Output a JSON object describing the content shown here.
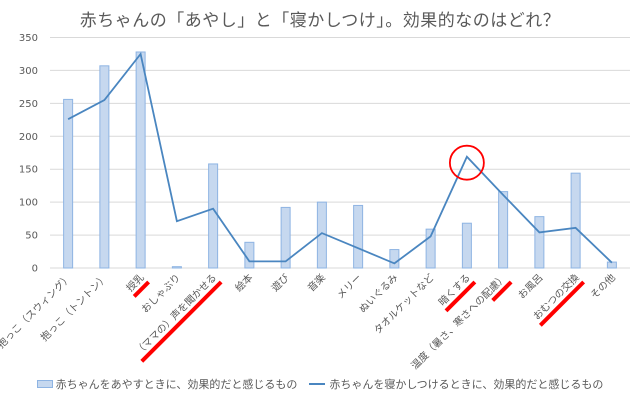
{
  "chart_data": {
    "type": "bar+line",
    "title": "赤ちゃんの「あやし」と「寝かしつけ」。効果的なのはどれ？",
    "xlabel": "",
    "ylabel": "",
    "ylim": [
      0,
      350
    ],
    "yticks": [
      0,
      50,
      100,
      150,
      200,
      250,
      300,
      350
    ],
    "grid": true,
    "legend_position": "bottom",
    "categories": [
      "抱っこ（スウィング）",
      "抱っこ（トントン）",
      "授乳",
      "おしゃぶり",
      "（ママの）声を聞かせる",
      "絵本",
      "遊び",
      "音楽",
      "メリー",
      "ぬいぐるみ",
      "タオルケットなど",
      "暗くする",
      "温度（暑さ、寒さへの配慮）",
      "お風呂",
      "おむつの交換",
      "その他"
    ],
    "series": [
      {
        "name": "赤ちゃんをあやすときに、効果的だと感じるもの",
        "type": "bar",
        "color": "#c6d8ef",
        "values": [
          256,
          307,
          328,
          2,
          158,
          39,
          92,
          100,
          95,
          28,
          59,
          68,
          116,
          78,
          144,
          9
        ]
      },
      {
        "name": "赤ちゃんを寝かしつけるときに、効果的だと感じるもの",
        "type": "line",
        "color": "#4a86c0",
        "values": [
          226,
          255,
          325,
          71,
          90,
          10,
          10,
          53,
          30,
          7,
          48,
          169,
          111,
          54,
          61,
          8
        ]
      }
    ],
    "annotations": [
      {
        "type": "circle",
        "color": "#ff0000",
        "target": "暗くする",
        "series": "line"
      },
      {
        "type": "underline",
        "color": "#ff0000",
        "targets": [
          "授乳",
          "（ママの）声を聞かせる",
          "暗くする",
          "温度（暑さ、寒さへの配慮）",
          "おむつの交換"
        ]
      }
    ]
  },
  "legend": {
    "bar_label": "赤ちゃんをあやすときに、効果的だと感じるもの",
    "line_label": "赤ちゃんを寝かしつけるときに、効果的だと感じるもの"
  },
  "colors": {
    "bar_fill": "#c6d8ef",
    "bar_stroke": "#8eb4e3",
    "line": "#4a86c0",
    "grid": "#d9d9d9",
    "highlight": "#ff0000"
  }
}
